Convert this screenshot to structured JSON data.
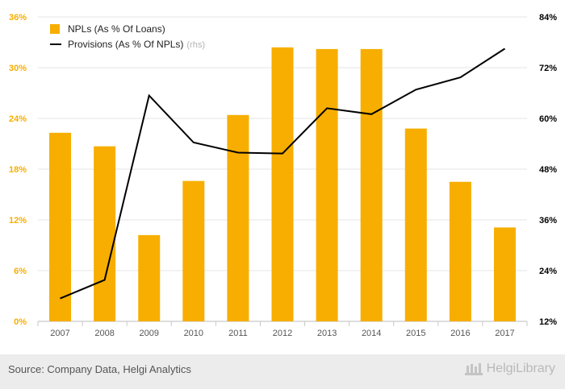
{
  "chart_data": {
    "type": "bar",
    "categories": [
      "2007",
      "2008",
      "2009",
      "2010",
      "2011",
      "2012",
      "2013",
      "2014",
      "2015",
      "2016",
      "2017"
    ],
    "series": [
      {
        "name": "NPLs (As % Of Loans)",
        "type": "bar",
        "axis": "left",
        "color": "#f7ae00",
        "values": [
          22.3,
          20.7,
          10.2,
          16.6,
          24.4,
          32.4,
          32.2,
          32.2,
          22.8,
          16.5,
          11.1
        ]
      },
      {
        "name": "Provisions (As % Of NPLs)",
        "type": "line",
        "axis": "right",
        "axis_note": "(rhs)",
        "color": "#000000",
        "values": [
          17.4,
          21.8,
          65.4,
          54.3,
          51.9,
          51.7,
          62.4,
          61.0,
          66.8,
          69.7,
          76.5
        ]
      }
    ],
    "y_left": {
      "ticks": [
        "0%",
        "6%",
        "12%",
        "18%",
        "24%",
        "30%",
        "36%"
      ],
      "ylim": [
        0,
        36
      ],
      "color": "#f7ae00"
    },
    "y_right": {
      "ticks": [
        "12%",
        "24%",
        "36%",
        "48%",
        "60%",
        "72%",
        "84%"
      ],
      "ylim": [
        12,
        84
      ],
      "color": "#000000"
    },
    "grid": true,
    "legend_position": "top-left"
  },
  "footer": {
    "source": "Source: Company Data, Helgi Analytics",
    "brand": "HelgiLibrary"
  }
}
